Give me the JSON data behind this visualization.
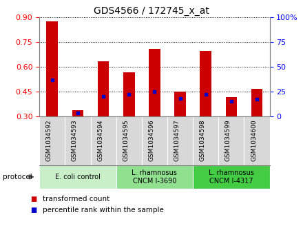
{
  "title": "GDS4566 / 172745_x_at",
  "samples": [
    "GSM1034592",
    "GSM1034593",
    "GSM1034594",
    "GSM1034595",
    "GSM1034596",
    "GSM1034597",
    "GSM1034598",
    "GSM1034599",
    "GSM1034600"
  ],
  "transformed_count": [
    0.875,
    0.335,
    0.635,
    0.565,
    0.71,
    0.45,
    0.695,
    0.415,
    0.465
  ],
  "percentile_rank": [
    37,
    3,
    20,
    22,
    25,
    18,
    22,
    15,
    17
  ],
  "bar_bottom": 0.3,
  "ylim_left": [
    0.3,
    0.9
  ],
  "ylim_right": [
    0,
    100
  ],
  "yticks_left": [
    0.3,
    0.45,
    0.6,
    0.75,
    0.9
  ],
  "yticks_right": [
    0,
    25,
    50,
    75,
    100
  ],
  "bar_color": "#cc0000",
  "percentile_color": "#0000cc",
  "protocol_groups": [
    {
      "label": "E. coli control",
      "start": 0,
      "end": 3,
      "color": "#c8efc8"
    },
    {
      "label": "L. rhamnosus\nCNCM I-3690",
      "start": 3,
      "end": 6,
      "color": "#90e090"
    },
    {
      "label": "L. rhamnosus\nCNCM I-4317",
      "start": 6,
      "end": 9,
      "color": "#44cc44"
    }
  ],
  "legend_items": [
    {
      "label": "transformed count",
      "color": "#cc0000"
    },
    {
      "label": "percentile rank within the sample",
      "color": "#0000cc"
    }
  ],
  "protocol_label": "protocol",
  "bg_color": "#d8d8d8",
  "fig_width": 4.4,
  "fig_height": 3.63,
  "dpi": 100
}
